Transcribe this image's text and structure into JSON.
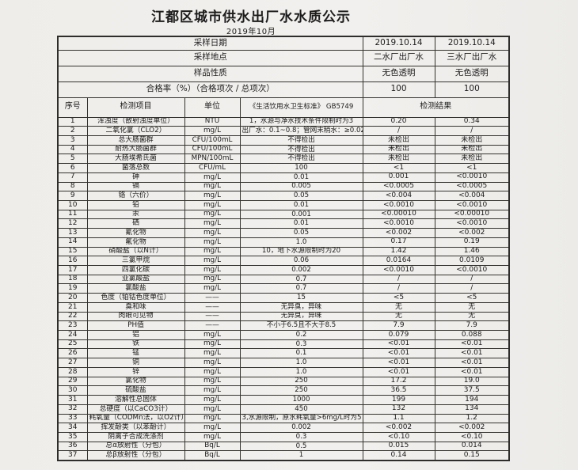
{
  "title": "江都区城市供水出厂水水质公示",
  "subtitle": "2019年10月",
  "colors": {
    "paper": "#f2f0ee",
    "ink": "#1c1c1c",
    "table_line": "#2e2d2b"
  },
  "table": {
    "info_rows": [
      {
        "label": "采样日期",
        "values": [
          "2019.10.14",
          "2019.10.14"
        ]
      },
      {
        "label": "采样地点",
        "values": [
          "二水厂出厂水",
          "三水厂出厂水"
        ]
      },
      {
        "label": "样品性质",
        "values": [
          "无色透明",
          "无色透明"
        ]
      },
      {
        "label": "合格率（%）（合格项次 / 总项次）",
        "values": [
          "100",
          "100"
        ]
      }
    ],
    "columns": {
      "no": "序号",
      "item": "检测项目",
      "unit": "单位",
      "standard": "《生活饮用水卫生标准》 GB5749",
      "result": "检测结果"
    },
    "rows": [
      [
        "1",
        "浑浊度（散射浊度单位）",
        "NTU",
        "1，水源与净水技术条件限制时为3",
        "0.20",
        "0.34"
      ],
      [
        "2",
        "二氧化氯（CLO2）",
        "mg/L",
        "出厂水：0.1~0.8；管网末稍水：≥0.02",
        "/",
        "/"
      ],
      [
        "3",
        "总大肠菌群",
        "CFU/100mL",
        "不得检出",
        "未检出",
        "未检出"
      ],
      [
        "4",
        "耐热大肠菌群",
        "CFU/100mL",
        "不得检出",
        "未检出",
        "未检出"
      ],
      [
        "5",
        "大肠埃希氏菌",
        "MPN/100mL",
        "不得检出",
        "未检出",
        "未检出"
      ],
      [
        "6",
        "菌落总数",
        "CFU/mL",
        "100",
        "<1",
        "<1"
      ],
      [
        "7",
        "砷",
        "mg/L",
        "0.01",
        "0.001",
        "<0.0010"
      ],
      [
        "8",
        "镉",
        "mg/L",
        "0.005",
        "<0.0005",
        "<0.0005"
      ],
      [
        "9",
        "铬（六价）",
        "mg/L",
        "0.05",
        "<0.004",
        "<0.004"
      ],
      [
        "10",
        "铅",
        "mg/L",
        "0.01",
        "<0.0010",
        "<0.0010"
      ],
      [
        "11",
        "汞",
        "mg/L",
        "0.001",
        "<0.00010",
        "<0.00010"
      ],
      [
        "12",
        "硒",
        "mg/L",
        "0.01",
        "<0.0010",
        "<0.0010"
      ],
      [
        "13",
        "氰化物",
        "mg/L",
        "0.05",
        "<0.002",
        "<0.002"
      ],
      [
        "14",
        "氟化物",
        "mg/L",
        "1.0",
        "0.17",
        "0.19"
      ],
      [
        "15",
        "硝酸盐（以N计）",
        "mg/L",
        "10，地下水源限制时为20",
        "1.42",
        "1.46"
      ],
      [
        "16",
        "三氯甲烷",
        "mg/L",
        "0.06",
        "0.0164",
        "0.0109"
      ],
      [
        "17",
        "四氯化碳",
        "mg/L",
        "0.002",
        "<0.0010",
        "<0.0010"
      ],
      [
        "18",
        "亚氯酸盐",
        "mg/L",
        "0.7",
        "/",
        "/"
      ],
      [
        "19",
        "氯酸盐",
        "mg/L",
        "0.7",
        "/",
        "/"
      ],
      [
        "20",
        "色度（铂钴色度单位）",
        "——",
        "15",
        "<5",
        "<5"
      ],
      [
        "21",
        "臭和味",
        "——",
        "无异臭，异味",
        "无",
        "无"
      ],
      [
        "22",
        "肉眼可见物",
        "——",
        "无异臭，异味",
        "无",
        "无"
      ],
      [
        "23",
        "PH值",
        "——",
        "不小于6.5且不大于8.5",
        "7.9",
        "7.9"
      ],
      [
        "24",
        "铝",
        "mg/L",
        "0.2",
        "0.079",
        "0.088"
      ],
      [
        "25",
        "铁",
        "mg/L",
        "0.3",
        "<0.01",
        "<0.01"
      ],
      [
        "26",
        "锰",
        "mg/L",
        "0.1",
        "<0.01",
        "<0.01"
      ],
      [
        "27",
        "铜",
        "mg/L",
        "1.0",
        "<0.01",
        "<0.01"
      ],
      [
        "28",
        "锌",
        "mg/L",
        "1.0",
        "<0.01",
        "<0.01"
      ],
      [
        "29",
        "氯化物",
        "mg/L",
        "250",
        "17.2",
        "19.0"
      ],
      [
        "30",
        "硫酸盐",
        "mg/L",
        "250",
        "36.5",
        "37.5"
      ],
      [
        "31",
        "溶解性总固体",
        "mg/L",
        "1000",
        "199",
        "194"
      ],
      [
        "32",
        "总硬度（以CaCO3计）",
        "mg/L",
        "450",
        "132",
        "134"
      ],
      [
        "33",
        "耗氧量（CODMn法，以O2计）",
        "mg/L",
        "3,水源限制，原水耗氧量>6mg/L时为5",
        "1.1",
        "1.2"
      ],
      [
        "34",
        "挥发酚类（以苯酚计）",
        "mg/L",
        "0.002",
        "<0.002",
        "<0.002"
      ],
      [
        "35",
        "阴离子合成洗涤剂",
        "mg/L",
        "0.3",
        "<0.10",
        "<0.10"
      ],
      [
        "36",
        "总α放射性（分包）",
        "Bq/L",
        "0.5",
        "0.015",
        "0.014"
      ],
      [
        "37",
        "总β放射性（分包）",
        "Bq/L",
        "1",
        "0.14",
        "0.15"
      ]
    ]
  }
}
